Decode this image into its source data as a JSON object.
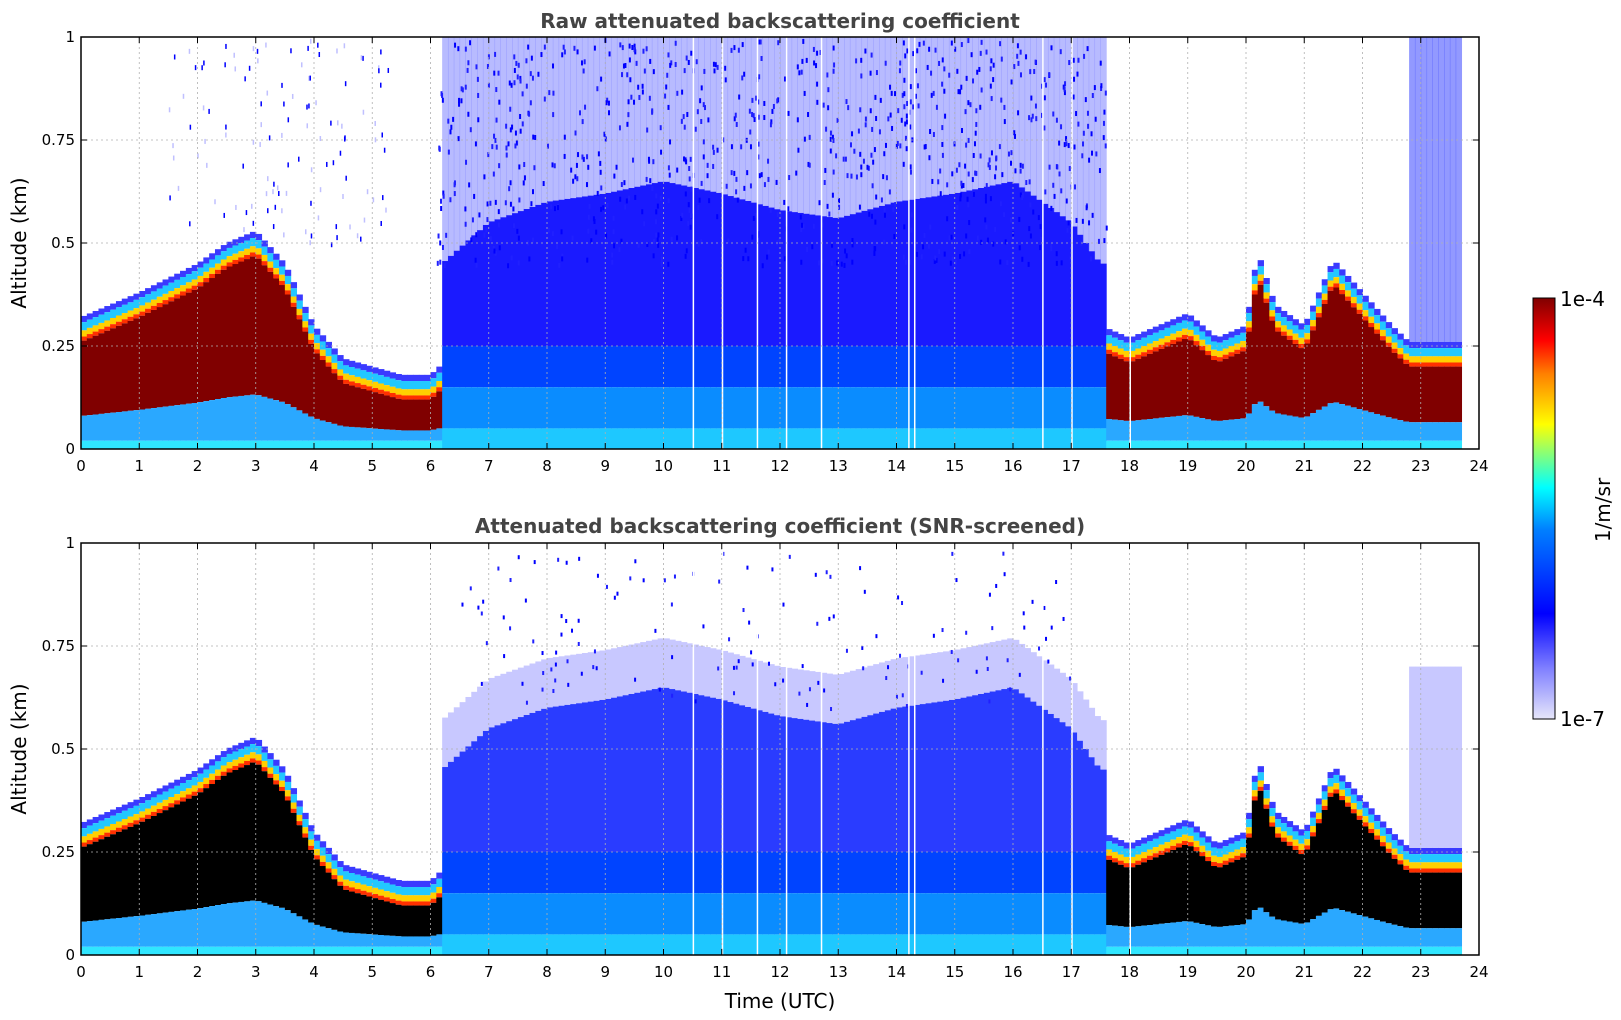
{
  "chart_data": [
    {
      "type": "heatmap",
      "title": "Raw attenuated backscattering coefficient",
      "xlabel": "",
      "ylabel": "Altitude (km)",
      "xlim": [
        0,
        24
      ],
      "ylim": [
        0,
        1
      ],
      "x_ticks": [
        "0",
        "1",
        "2",
        "3",
        "4",
        "5",
        "6",
        "7",
        "8",
        "9",
        "10",
        "11",
        "12",
        "13",
        "14",
        "15",
        "16",
        "17",
        "18",
        "19",
        "20",
        "21",
        "22",
        "23",
        "24"
      ],
      "y_ticks": [
        "0",
        "0.25",
        "0.5",
        "0.75",
        "1"
      ],
      "grid": true,
      "variant": "raw",
      "boundary_layer": {
        "times_utc": [
          0,
          1,
          2,
          2.5,
          3,
          3.5,
          4,
          4.5,
          5,
          5.5,
          6,
          6.3,
          17.5,
          18,
          19,
          19.5,
          20,
          20.2,
          20.5,
          21,
          21.5,
          22,
          22.5,
          22.8
        ],
        "top_km": [
          0.32,
          0.38,
          0.45,
          0.5,
          0.53,
          0.45,
          0.3,
          0.22,
          0.2,
          0.18,
          0.18,
          0.22,
          0.3,
          0.27,
          0.33,
          0.27,
          0.3,
          0.48,
          0.35,
          0.3,
          0.46,
          0.38,
          0.3,
          0.26
        ]
      },
      "noise_region_utc": [
        6,
        17.6
      ],
      "noise_region_late_utc": [
        22.8,
        23.7
      ],
      "data_gaps_utc": [
        10.5,
        11,
        11.6,
        12.1,
        12.7,
        14.2,
        14.3,
        16.5,
        17,
        18
      ]
    },
    {
      "type": "heatmap",
      "title": "Attenuated backscattering coefficient (SNR-screened)",
      "xlabel": "Time (UTC)",
      "ylabel": "Altitude (km)",
      "xlim": [
        0,
        24
      ],
      "ylim": [
        0,
        1
      ],
      "x_ticks": [
        "0",
        "1",
        "2",
        "3",
        "4",
        "5",
        "6",
        "7",
        "8",
        "9",
        "10",
        "11",
        "12",
        "13",
        "14",
        "15",
        "16",
        "17",
        "18",
        "19",
        "20",
        "21",
        "22",
        "23",
        "24"
      ],
      "y_ticks": [
        "0",
        "0.25",
        "0.5",
        "0.75",
        "1"
      ],
      "grid": true,
      "variant": "screened",
      "saturated_color": "#000000",
      "mixing_layer": {
        "times_utc": [
          6.2,
          7,
          8,
          9,
          10,
          11,
          12,
          13,
          14,
          15,
          16,
          17,
          17.5
        ],
        "top_km": [
          0.45,
          0.55,
          0.6,
          0.62,
          0.65,
          0.62,
          0.58,
          0.56,
          0.6,
          0.62,
          0.65,
          0.55,
          0.45
        ]
      },
      "data_gaps_utc": [
        10.5,
        11,
        11.6,
        12.1,
        12.7,
        14.2,
        14.3,
        16.5,
        17,
        18
      ]
    }
  ],
  "colorbar": {
    "label": "1/m/sr",
    "max_label": "1e-4",
    "min_label": "1e-7",
    "scale": "log"
  },
  "colors": {
    "cmap_low": "#e6e6fa",
    "cmap_blue": "#0000ff",
    "cmap_cyan": "#00ffff",
    "cmap_yellow": "#ffff00",
    "cmap_red": "#ff0000",
    "cmap_high": "#800000",
    "title_color": "#444444"
  }
}
